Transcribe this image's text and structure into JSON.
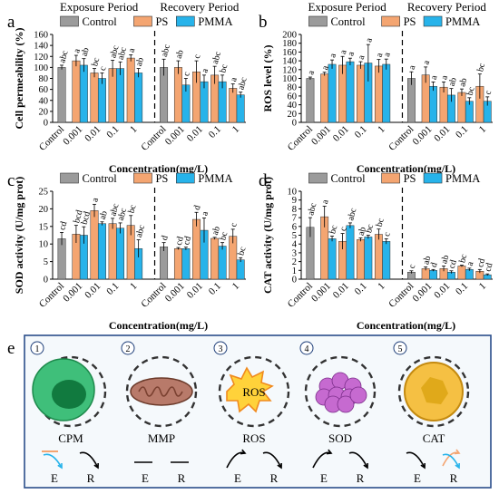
{
  "chart_data": [
    {
      "type": "bar",
      "panel": "a",
      "period_labels": [
        "Exposure Period",
        "Recovery Period"
      ],
      "ylabel": "Cell permeability (%)",
      "xlabel": "Concentration(mg/L)",
      "ylim": [
        0,
        160
      ],
      "yticks": [
        0,
        20,
        40,
        60,
        80,
        100,
        120,
        140,
        160
      ],
      "categories": [
        "Control",
        "0.001",
        "0.01",
        "0.1",
        "1",
        "Control",
        "0.001",
        "0.01",
        "0.1",
        "1"
      ],
      "series": [
        {
          "name": "Control",
          "values": [
            100,
            null,
            null,
            null,
            null,
            100,
            null,
            null,
            null,
            null
          ],
          "errors": [
            4,
            null,
            null,
            null,
            null,
            15,
            null,
            null,
            null,
            null
          ]
        },
        {
          "name": "PS",
          "values": [
            null,
            112,
            90,
            98,
            117,
            null,
            100,
            92,
            86,
            62
          ],
          "errors": [
            null,
            10,
            8,
            15,
            6,
            null,
            12,
            20,
            16,
            8
          ]
        },
        {
          "name": "PMMA",
          "values": [
            null,
            104,
            80,
            98,
            90,
            null,
            68,
            74,
            74,
            50
          ],
          "errors": [
            null,
            12,
            10,
            12,
            8,
            null,
            12,
            12,
            12,
            5
          ]
        }
      ],
      "labels": [
        "abc",
        "a",
        "ab",
        "bc",
        "c",
        "abc",
        "abc",
        "a",
        "ab",
        "abc",
        "ab",
        "c",
        "c",
        "a",
        "abc",
        "bc",
        "a",
        "abc",
        "abc",
        "abc",
        "bc",
        "c"
      ],
      "legend": "top"
    },
    {
      "type": "bar",
      "panel": "b",
      "period_labels": [
        "Exposure Period",
        "Recovery Period"
      ],
      "ylabel": "ROS level (%)",
      "xlabel": "Concentration(mg/L)",
      "ylim": [
        0,
        200
      ],
      "yticks": [
        0,
        20,
        40,
        60,
        80,
        100,
        120,
        140,
        160,
        180,
        200
      ],
      "categories": [
        "Control",
        "0.001",
        "0.01",
        "0.1",
        "1",
        "Control",
        "0.001",
        "0.01",
        "0.1",
        "1"
      ],
      "series": [
        {
          "name": "Control",
          "values": [
            100,
            null,
            null,
            null,
            null,
            100,
            null,
            null,
            null,
            null
          ],
          "errors": [
            3,
            null,
            null,
            null,
            null,
            15,
            null,
            null,
            null,
            null
          ]
        },
        {
          "name": "PS",
          "values": [
            null,
            110,
            130,
            130,
            128,
            null,
            108,
            80,
            68,
            82
          ],
          "errors": [
            null,
            4,
            20,
            8,
            15,
            null,
            18,
            12,
            8,
            28
          ]
        },
        {
          "name": "PMMA",
          "values": [
            null,
            132,
            138,
            135,
            132,
            null,
            82,
            62,
            48,
            48
          ],
          "errors": [
            null,
            10,
            8,
            42,
            12,
            null,
            10,
            15,
            8,
            10
          ]
        }
      ],
      "labels": [
        "a",
        "a",
        "a",
        "a",
        "a",
        "a",
        "a",
        "a",
        "a",
        "a",
        "a",
        "a",
        "a",
        "ab",
        "ab",
        "bc",
        "bc",
        "c",
        "c",
        "ab",
        "c"
      ],
      "legend": "top"
    },
    {
      "type": "bar",
      "panel": "c",
      "ylabel": "SOD activity (U/mg prot)",
      "xlabel": "Concentration(mg/L)",
      "ylim": [
        0,
        25
      ],
      "yticks": [
        0,
        5,
        10,
        15,
        20,
        25
      ],
      "categories": [
        "Control",
        "0.001",
        "0.01",
        "0.1",
        "1",
        "Control",
        "0.001",
        "0.01",
        "0.1",
        "1"
      ],
      "series": [
        {
          "name": "Control",
          "values": [
            11.5,
            null,
            null,
            null,
            null,
            9.2,
            null,
            null,
            null,
            null
          ],
          "errors": [
            1.8,
            null,
            null,
            null,
            null,
            1.2,
            null,
            null,
            null,
            null
          ]
        },
        {
          "name": "PS",
          "values": [
            null,
            12.8,
            19.5,
            15.8,
            15.3,
            null,
            8.7,
            17.0,
            11.6,
            12.2
          ],
          "errors": [
            null,
            2.5,
            1.8,
            1.5,
            2.8,
            null,
            0.3,
            2.0,
            0.3,
            2.0
          ]
        },
        {
          "name": "PMMA",
          "values": [
            null,
            12.5,
            15.8,
            14.5,
            8.7,
            null,
            8.7,
            13.9,
            9.4,
            5.5
          ],
          "errors": [
            null,
            2.4,
            0.5,
            1.5,
            2.5,
            null,
            0.4,
            3.5,
            1.0,
            0.6
          ]
        }
      ],
      "labels": [
        "cd",
        "bcd",
        "bcd",
        "a",
        "ab",
        "abc",
        "abc",
        "bc",
        "abc",
        "d",
        "cd",
        "cd",
        "d",
        "a",
        "ab",
        "bc",
        "c",
        "bc",
        "d"
      ],
      "legend": "top"
    },
    {
      "type": "bar",
      "panel": "d",
      "ylabel": "CAT activity (U/mg prot)",
      "xlabel": "Concentration(mg/L)",
      "ylim": [
        0,
        10
      ],
      "yticks": [
        0,
        1,
        2,
        3,
        4,
        5,
        6,
        7,
        8,
        9,
        10
      ],
      "categories": [
        "Control",
        "0.001",
        "0.01",
        "0.1",
        "1",
        "Control",
        "0.001",
        "0.01",
        "0.1",
        "1"
      ],
      "series": [
        {
          "name": "Control",
          "values": [
            5.9,
            null,
            null,
            null,
            null,
            0.8,
            null,
            null,
            null,
            null
          ],
          "errors": [
            1.1,
            null,
            null,
            null,
            null,
            0.15,
            null,
            null,
            null,
            null
          ]
        },
        {
          "name": "PS",
          "values": [
            null,
            7.1,
            4.3,
            4.5,
            5.1,
            null,
            1.2,
            1.2,
            1.5,
            0.9
          ],
          "errors": [
            null,
            1.2,
            0.9,
            0.2,
            0.6,
            null,
            0.2,
            0.3,
            0.1,
            0.2
          ]
        },
        {
          "name": "PMMA",
          "values": [
            null,
            4.6,
            6.1,
            4.8,
            4.3,
            null,
            1.0,
            0.8,
            1.1,
            0.5
          ],
          "errors": [
            null,
            0.3,
            0.3,
            0.2,
            0.3,
            null,
            0.1,
            0.15,
            0.15,
            0.1
          ]
        }
      ],
      "labels": [
        "abc",
        "a",
        "bc",
        "c",
        "abc",
        "ab",
        "bc",
        "bc",
        "c",
        "c",
        "ab",
        "d",
        "ab",
        "cd",
        "bc",
        "a",
        "cd",
        "cd",
        "d"
      ],
      "legend": "top"
    }
  ],
  "figure": {
    "panel_labels": [
      "a",
      "b",
      "c",
      "d",
      "e"
    ],
    "legend_labels": [
      "Control",
      "PS",
      "PMMA"
    ],
    "colors": {
      "Control": "#9b9b9b",
      "PS": "#f4a571",
      "PMMA": "#27b3ea",
      "axis": "#000000",
      "divider": "#000000",
      "panel_e_border": "#2a4d8a",
      "panel_e_bg": "#f5f9fc"
    }
  },
  "panel_e": {
    "items": [
      {
        "number": "1",
        "name": "CPM",
        "icon": "cell-membrane-icon",
        "trend": "E decrease, R decrease",
        "e": "E",
        "r": "R"
      },
      {
        "number": "2",
        "name": "MMP",
        "icon": "mitochondria-icon",
        "trend": "no change",
        "e": "E",
        "r": "R"
      },
      {
        "number": "3",
        "name": "ROS",
        "icon": "ros-burst-icon",
        "icon_text": "ROS",
        "trend": "E increase, R decrease",
        "e": "E",
        "r": "R"
      },
      {
        "number": "4",
        "name": "SOD",
        "icon": "sod-cluster-icon",
        "trend": "E increase, R decrease",
        "e": "E",
        "r": "R"
      },
      {
        "number": "5",
        "name": "CAT",
        "icon": "cat-granule-icon",
        "trend": "E decrease, R mixed",
        "e": "E",
        "r": "R"
      }
    ]
  }
}
